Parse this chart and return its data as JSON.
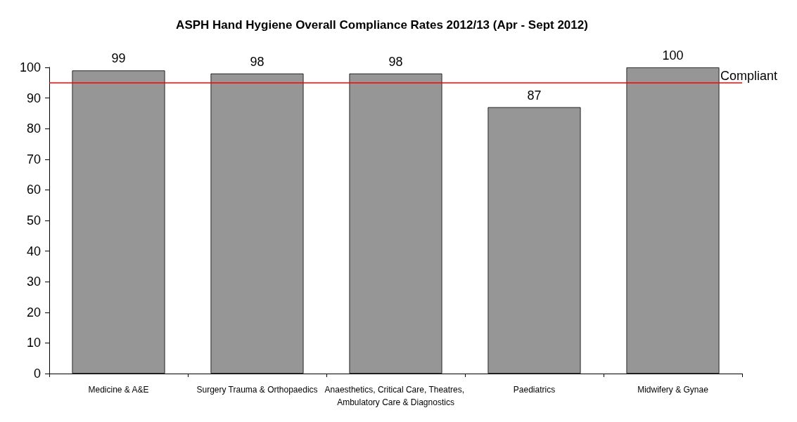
{
  "chart_data": {
    "type": "bar",
    "title": "ASPH Hand Hygiene Overall Compliance Rates 2012/13 (Apr - Sept 2012)",
    "categories": [
      "Medicine & A&E",
      "Surgery Trauma & Orthopaedics",
      "Anaesthetics, Critical Care, Theatres, Ambulatory Care & Diagnostics",
      "Paediatrics",
      "Midwifery & Gynae"
    ],
    "values": [
      99,
      98,
      98,
      87,
      100
    ],
    "color": "#969696",
    "ylim": [
      0,
      100
    ],
    "yticks": [
      0,
      10,
      20,
      30,
      40,
      50,
      60,
      70,
      80,
      90,
      100
    ],
    "ref_lines": [
      {
        "axis": "y",
        "value": 95,
        "label": "Compliant",
        "color": "#ff0000"
      }
    ],
    "data_labels": true,
    "grid": false
  }
}
